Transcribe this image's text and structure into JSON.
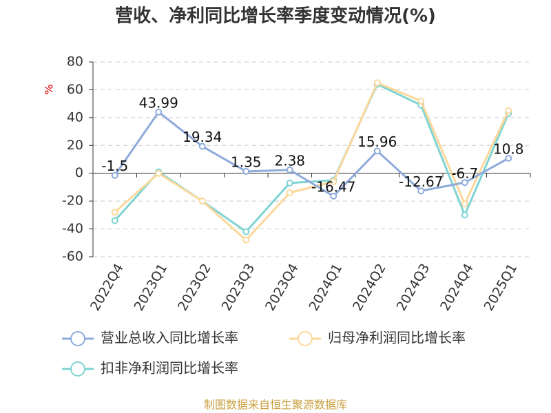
{
  "chart_data": {
    "type": "line",
    "title": "营收、净利同比增长率季度变动情况(%)",
    "y_label": "%",
    "categories": [
      "2022Q4",
      "2023Q1",
      "2023Q2",
      "2023Q3",
      "2023Q4",
      "2024Q1",
      "2024Q2",
      "2024Q3",
      "2024Q4",
      "2025Q1"
    ],
    "series": [
      {
        "name": "营业总收入同比增长率",
        "color": "#8eaadb",
        "values": [
          -1.5,
          43.99,
          19.34,
          1.35,
          2.38,
          -16.47,
          15.96,
          -12.67,
          -6.7,
          10.8
        ],
        "show_labels": true
      },
      {
        "name": "归母净利润同比增长率",
        "color": "#fcd89b",
        "values": [
          -28,
          0,
          -20,
          -48,
          -14,
          -6,
          65,
          52,
          -22,
          45
        ]
      },
      {
        "name": "扣非净利润同比增长率",
        "color": "#7fd4d3",
        "values": [
          -34,
          1,
          -20,
          -42,
          -7,
          -5,
          64,
          49,
          -30,
          43
        ]
      }
    ],
    "ylim": [
      -60,
      80
    ],
    "yticks": [
      -60,
      -40,
      -20,
      0,
      20,
      40,
      60,
      80
    ],
    "grid": true,
    "source": "制图数据来自恒生聚源数据库"
  }
}
